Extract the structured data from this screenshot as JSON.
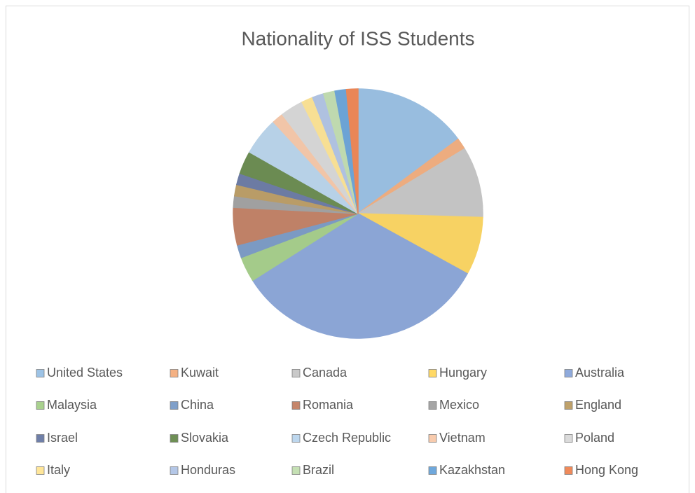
{
  "chart_data": {
    "type": "pie",
    "title": "Nationality of ISS Students",
    "categories": [
      "United States",
      "Kuwait",
      "Canada",
      "Hungary",
      "Australia",
      "Malaysia",
      "China",
      "Romania",
      "Mexico",
      "England",
      "Israel",
      "Slovakia",
      "Czech Republic",
      "Vietnam",
      "Poland",
      "Italy",
      "Honduras",
      "Brazil",
      "Kazakhstan",
      "Hong Kong"
    ],
    "values": [
      15,
      1.5,
      9.3,
      7.6,
      33.4,
      3.3,
      1.7,
      4.9,
      1.5,
      1.5,
      1.5,
      3,
      5,
      1.5,
      3,
      1.5,
      1.5,
      1.5,
      1.5,
      1.5
    ],
    "colors": [
      "#9dc3e6",
      "#f4b183",
      "#c9c9c9",
      "#ffd966",
      "#8faadc",
      "#a9d18e",
      "#7f9fc9",
      "#c5856a",
      "#a5a5a5",
      "#bfa16a",
      "#6f7fa8",
      "#6e8f55",
      "#bdd7ee",
      "#f8cbad",
      "#dbdbdb",
      "#ffe699",
      "#b4c7e7",
      "#c5e0b4",
      "#6fa8dc",
      "#f08a5a"
    ],
    "legend": "bottom"
  }
}
